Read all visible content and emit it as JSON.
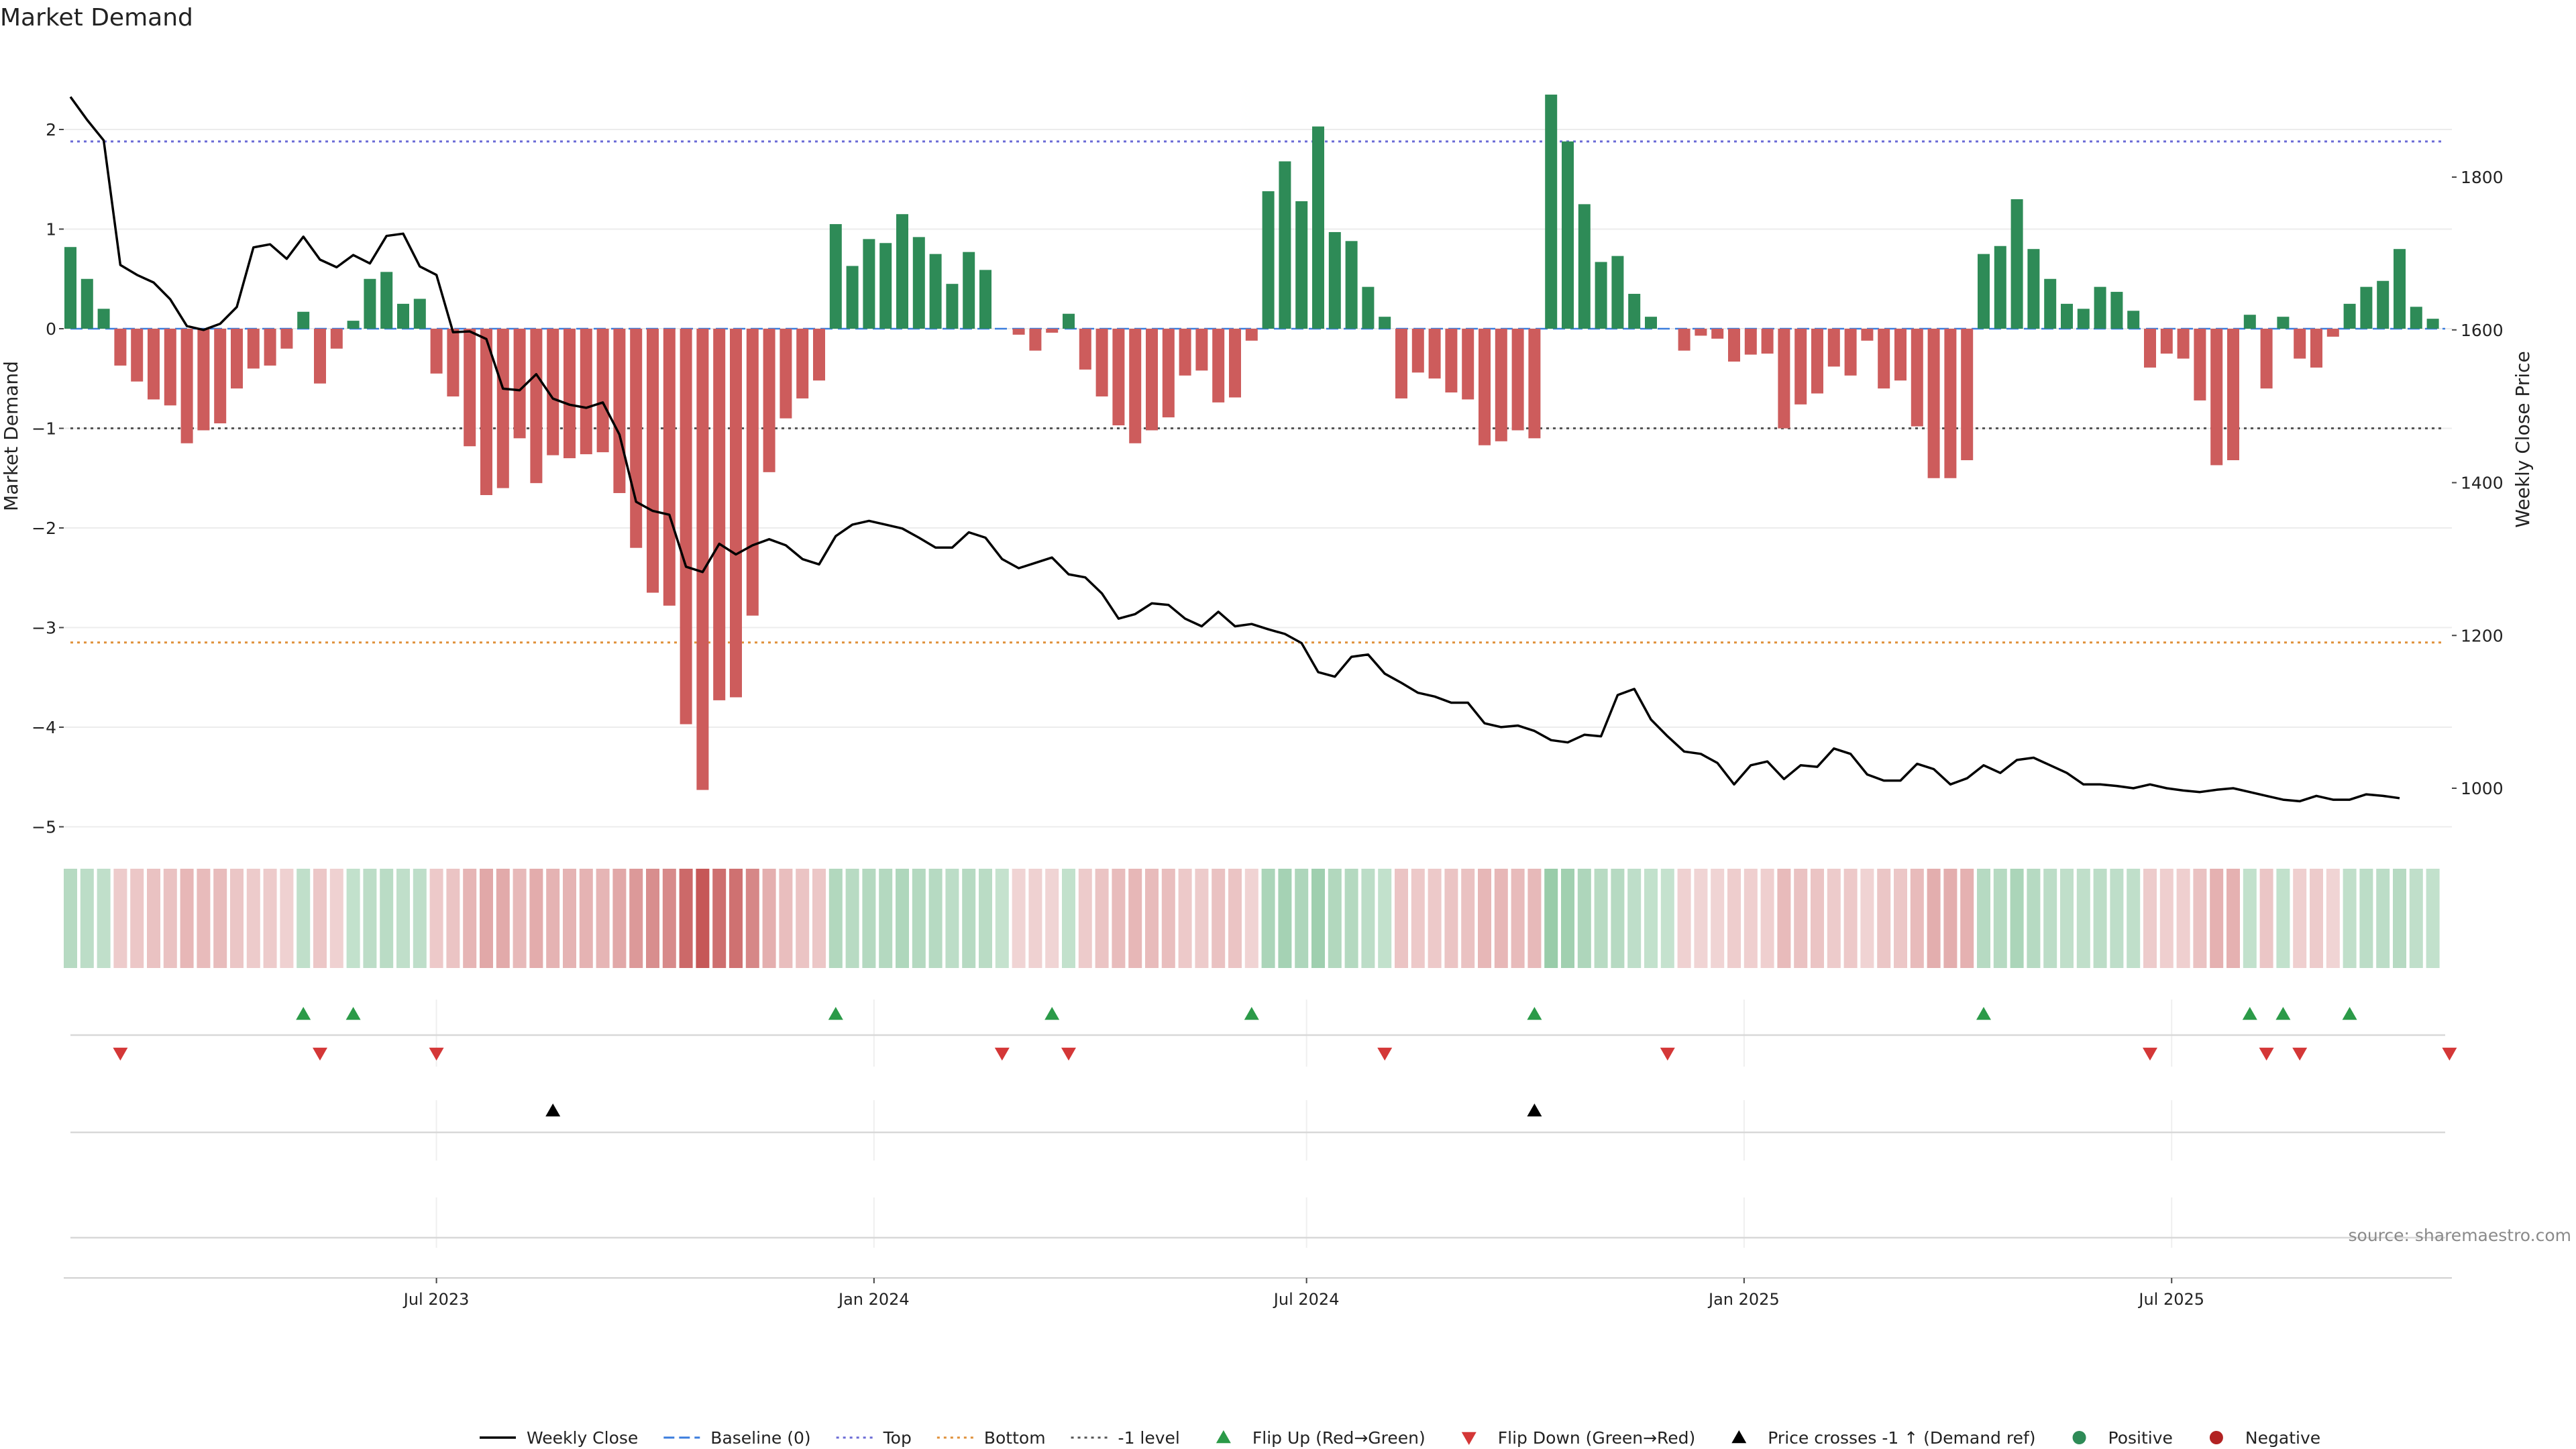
{
  "chart_data": {
    "type": "bar",
    "title": "Market Demand",
    "ylabel_left": "Market Demand",
    "ylabel_right": "Weekly Close Price",
    "left_ylim": [
      -5.4,
      2.6
    ],
    "left_yticks": [
      2,
      1,
      0,
      -1,
      -2,
      -3,
      -4,
      -5
    ],
    "left_ytick_labels": [
      "2",
      "1",
      "0",
      "−1",
      "−2",
      "−3",
      "−4",
      "−5"
    ],
    "right_ylim": [
      950,
      1960
    ],
    "right_yticks": [
      1800,
      1600,
      1400,
      1200,
      1000
    ],
    "right_ytick_labels": [
      "1800",
      "1600",
      "1400",
      "1200",
      "1000"
    ],
    "x_ticks": [
      {
        "label": "Jul 2023",
        "week": 22
      },
      {
        "label": "Jan 2024",
        "week": 48.3
      },
      {
        "label": "Jul 2024",
        "week": 74.3
      },
      {
        "label": "Jan 2025",
        "week": 100.6
      },
      {
        "label": "Jul 2025",
        "week": 126.3
      }
    ],
    "reference_lines": {
      "top": 1.88,
      "bottom": -3.15,
      "minus_one_level": -1,
      "baseline": 0
    },
    "market_demand": [
      0.82,
      0.5,
      0.2,
      -0.37,
      -0.53,
      -0.71,
      -0.77,
      -1.15,
      -1.02,
      -0.95,
      -0.6,
      -0.4,
      -0.37,
      -0.2,
      0.17,
      -0.55,
      -0.2,
      0.08,
      0.5,
      0.57,
      0.25,
      0.3,
      -0.45,
      -0.68,
      -1.18,
      -1.67,
      -1.6,
      -1.1,
      -1.55,
      -1.27,
      -1.3,
      -1.26,
      -1.24,
      -1.65,
      -2.2,
      -2.65,
      -2.78,
      -3.97,
      -4.63,
      -3.73,
      -3.7,
      -2.88,
      -1.44,
      -0.9,
      -0.7,
      -0.52,
      1.05,
      0.63,
      0.9,
      0.86,
      1.15,
      0.92,
      0.75,
      0.45,
      0.77,
      0.59,
      0,
      -0.06,
      -0.22,
      -0.04,
      0.15,
      -0.41,
      -0.68,
      -0.97,
      -1.15,
      -1.02,
      -0.89,
      -0.47,
      -0.42,
      -0.74,
      -0.69,
      -0.12,
      1.38,
      1.68,
      1.28,
      2.03,
      0.97,
      0.88,
      0.42,
      0.12,
      -0.7,
      -0.44,
      -0.5,
      -0.64,
      -0.71,
      -1.17,
      -1.13,
      -1.02,
      -1.1,
      2.35,
      1.88,
      1.25,
      0.67,
      0.73,
      0.35,
      0.12,
      0,
      -0.22,
      -0.07,
      -0.1,
      -0.33,
      -0.26,
      -0.25,
      -1,
      -0.76,
      -0.65,
      -0.38,
      -0.47,
      -0.12,
      -0.6,
      -0.52,
      -0.98,
      -1.5,
      -1.5,
      -1.32,
      0.75,
      0.83,
      1.3,
      0.8,
      0.5,
      0.25,
      0.2,
      0.42,
      0.37,
      0.18,
      -0.39,
      -0.25,
      -0.3,
      -0.72,
      -1.37,
      -1.32,
      0.14,
      -0.6,
      0.12,
      -0.3,
      -0.39,
      -0.08,
      0.25,
      0.42,
      0.48,
      0.8,
      0.22,
      0.1
    ],
    "weekly_close": [
      1905,
      1875,
      1848,
      1685,
      1672,
      1662,
      1640,
      1605,
      1600,
      1608,
      1630,
      1708,
      1712,
      1693,
      1722,
      1692,
      1682,
      1698,
      1687,
      1723,
      1726,
      1683,
      1672,
      1597,
      1598,
      1588,
      1523,
      1521,
      1542,
      1510,
      1502,
      1498,
      1505,
      1463,
      1375,
      1363,
      1358,
      1290,
      1283,
      1320,
      1306,
      1318,
      1326,
      1318,
      1300,
      1293,
      1330,
      1345,
      1350,
      1345,
      1340,
      1328,
      1315,
      1315,
      1335,
      1328,
      1300,
      1288,
      1295,
      1302,
      1280,
      1276,
      1255,
      1222,
      1228,
      1242,
      1240,
      1222,
      1212,
      1231,
      1212,
      1215,
      1208,
      1202,
      1190,
      1152,
      1146,
      1172,
      1175,
      1150,
      1138,
      1125,
      1120,
      1112,
      1112,
      1085,
      1080,
      1082,
      1075,
      1063,
      1060,
      1070,
      1068,
      1122,
      1130,
      1090,
      1068,
      1048,
      1045,
      1033,
      1005,
      1030,
      1035,
      1012,
      1030,
      1028,
      1052,
      1045,
      1018,
      1010,
      1010,
      1032,
      1025,
      1005,
      1013,
      1030,
      1020,
      1037,
      1040,
      1030,
      1020,
      1005,
      1005,
      1003,
      1000,
      1005,
      1000,
      997,
      995,
      998,
      1000,
      995,
      990,
      985,
      983,
      990,
      985,
      985,
      992,
      990,
      987
    ],
    "flip_up_weeks": [
      14,
      17,
      46,
      59,
      71,
      88,
      115,
      131,
      133,
      137
    ],
    "flip_down_weeks": [
      3,
      15,
      22,
      56,
      60,
      79,
      96,
      125,
      132,
      134,
      143
    ],
    "price_cross_weeks": [
      29,
      88
    ],
    "heat_strip": "colored cells for each week (green = positive, red = negative, darker = stronger)",
    "legend": [
      {
        "label": "Weekly Close",
        "kind": "line",
        "color": "#000000"
      },
      {
        "label": "Baseline (0)",
        "kind": "dash",
        "color": "#3b7ddd"
      },
      {
        "label": "Top",
        "kind": "dot",
        "color": "#6b6bd6"
      },
      {
        "label": "Bottom",
        "kind": "dot",
        "color": "#e0913a"
      },
      {
        "label": "-1 level",
        "kind": "dot",
        "color": "#555555"
      },
      {
        "label": "Flip Up (Red→Green)",
        "kind": "tri-up",
        "color": "#2b9a48"
      },
      {
        "label": "Flip Down (Green→Red)",
        "kind": "tri-down",
        "color": "#d43737"
      },
      {
        "label": "Price crosses -1 ↑ (Demand ref)",
        "kind": "tri-up",
        "color": "#000000"
      },
      {
        "label": "Positive",
        "kind": "dot-marker",
        "color": "#2e8b57"
      },
      {
        "label": "Negative",
        "kind": "dot-marker",
        "color": "#b22222"
      }
    ],
    "source_note": "source: sharemaestro.com",
    "colors": {
      "positive": "#2e8b57",
      "negative": "#cd5c5c",
      "price": "#000000",
      "grid": "#e6e6e6"
    }
  }
}
